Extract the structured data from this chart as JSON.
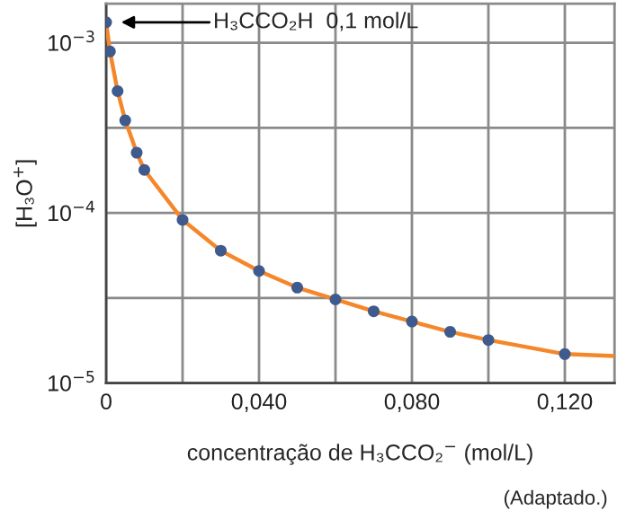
{
  "chart_data": {
    "type": "scatter",
    "xlabel": "concentração de H₃CCO₂$^{−}$ (mol/L)",
    "ylabel": "[H₃O$^{+}$]",
    "series": [
      {
        "type": "line",
        "color": "#f5872a",
        "line_style": "solid",
        "marker": "none",
        "x": [
          0,
          0.001,
          0.003,
          0.005,
          0.008,
          0.01,
          0.02,
          0.03,
          0.04,
          0.05,
          0.06,
          0.07,
          0.08,
          0.09,
          0.1,
          0.12,
          0.133
        ],
        "values": [
          0.00132,
          0.00089,
          0.00052,
          0.00035,
          0.000226,
          0.000179,
          9.1e-05,
          6e-05,
          4.56e-05,
          3.64e-05,
          3.1e-05,
          2.64e-05,
          2.3e-05,
          2e-05,
          1.79e-05,
          1.48e-05,
          1.44e-05
        ]
      },
      {
        "color": "#3f5a8c",
        "marker": "circle",
        "x": [
          0,
          0.001,
          0.003,
          0.005,
          0.008,
          0.01,
          0.02,
          0.03,
          0.04,
          0.05,
          0.06,
          0.07,
          0.08,
          0.09,
          0.1,
          0.12
        ],
        "values": [
          0.00132,
          0.00089,
          0.00052,
          0.00035,
          0.000226,
          0.000179,
          9.1e-05,
          6e-05,
          4.56e-05,
          3.64e-05,
          3.1e-05,
          2.64e-05,
          2.3e-05,
          2e-05,
          1.79e-05,
          1.48e-05
        ]
      }
    ],
    "log": "y",
    "xlim": [
      0,
      0.133
    ],
    "ylim": [
      1e-05,
      0.0017
    ],
    "xticks": [
      0,
      {
        "value": 0.02,
        "label": null
      },
      {
        "value": 0.04,
        "label": "0,040"
      },
      {
        "value": 0.06,
        "label": null
      },
      {
        "value": 0.08,
        "label": "0,080"
      },
      {
        "value": 0.1,
        "label": null
      },
      {
        "value": 0.12,
        "label": "0,120"
      }
    ],
    "yticks": [
      {
        "value": 1e-05,
        "label": "10$^{−5}$"
      },
      {
        "value": 3.16e-05,
        "label": null
      },
      {
        "value": 0.0001,
        "label": "10$^{−4}$"
      },
      {
        "value": 0.000316,
        "label": null
      },
      {
        "value": 0.001,
        "label": "10$^{−3}$"
      }
    ],
    "grid": true,
    "legend": false,
    "annotations": [
      "H₃CCO₂H  0,1 mol/L",
      "(Adaptado.)"
    ]
  }
}
